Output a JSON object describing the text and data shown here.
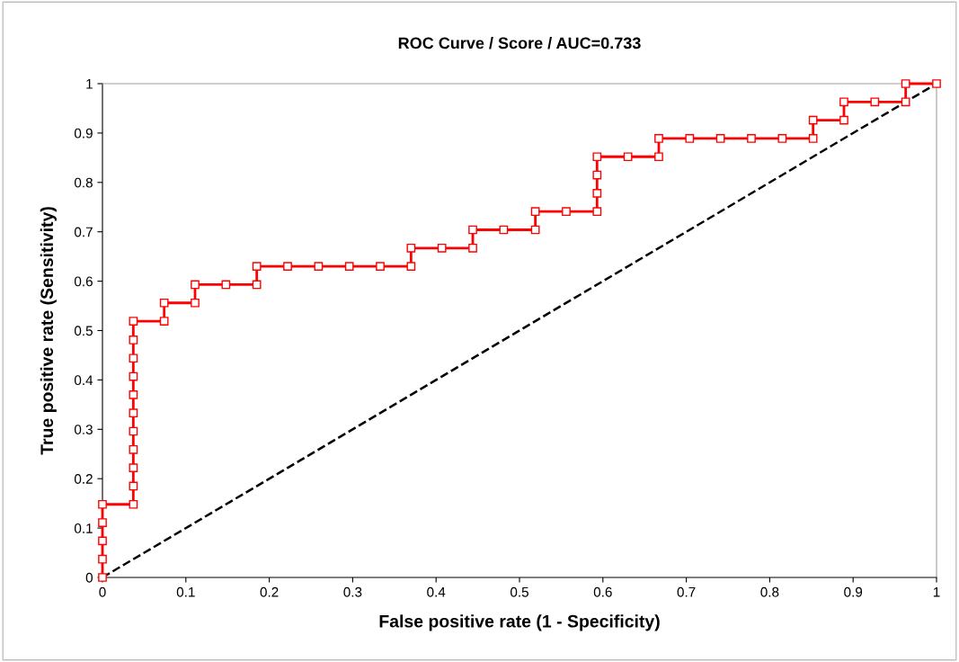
{
  "chart_data": {
    "type": "line",
    "title": "ROC Curve / Score / AUC=0.733",
    "xlabel": "False positive rate (1 - Specificity)",
    "ylabel": "True positive rate (Sensitivity)",
    "xlim": [
      0,
      1
    ],
    "ylim": [
      0,
      1
    ],
    "xticks": [
      0,
      0.1,
      0.2,
      0.3,
      0.4,
      0.5,
      0.6,
      0.7,
      0.8,
      0.9,
      1
    ],
    "yticks": [
      0,
      0.1,
      0.2,
      0.3,
      0.4,
      0.5,
      0.6,
      0.7,
      0.8,
      0.9,
      1
    ],
    "grid": false,
    "legend": false,
    "series": [
      {
        "color": "#ff0000",
        "marker": "square",
        "line_style": "solid",
        "x": [
          0,
          0,
          0,
          0,
          0,
          0.037,
          0.037,
          0.037,
          0.037,
          0.037,
          0.037,
          0.037,
          0.037,
          0.037,
          0.037,
          0.037,
          0.074,
          0.074,
          0.111,
          0.111,
          0.148,
          0.185,
          0.185,
          0.222,
          0.259,
          0.296,
          0.333,
          0.37,
          0.37,
          0.407,
          0.444,
          0.444,
          0.481,
          0.519,
          0.519,
          0.556,
          0.593,
          0.593,
          0.593,
          0.593,
          0.63,
          0.667,
          0.667,
          0.704,
          0.741,
          0.778,
          0.815,
          0.852,
          0.852,
          0.889,
          0.889,
          0.926,
          0.963,
          0.963,
          1
        ],
        "values": [
          0,
          0.037,
          0.074,
          0.111,
          0.148,
          0.148,
          0.185,
          0.222,
          0.259,
          0.296,
          0.333,
          0.37,
          0.407,
          0.444,
          0.481,
          0.519,
          0.519,
          0.556,
          0.556,
          0.593,
          0.593,
          0.593,
          0.63,
          0.63,
          0.63,
          0.63,
          0.63,
          0.63,
          0.667,
          0.667,
          0.667,
          0.704,
          0.704,
          0.704,
          0.741,
          0.741,
          0.741,
          0.778,
          0.815,
          0.852,
          0.852,
          0.852,
          0.889,
          0.889,
          0.889,
          0.889,
          0.889,
          0.889,
          0.926,
          0.926,
          0.963,
          0.963,
          0.963,
          1,
          1
        ]
      },
      {
        "color": "#000000",
        "marker": "none",
        "line_style": "dashed",
        "x": [
          0,
          1
        ],
        "values": [
          0,
          1
        ]
      }
    ]
  }
}
